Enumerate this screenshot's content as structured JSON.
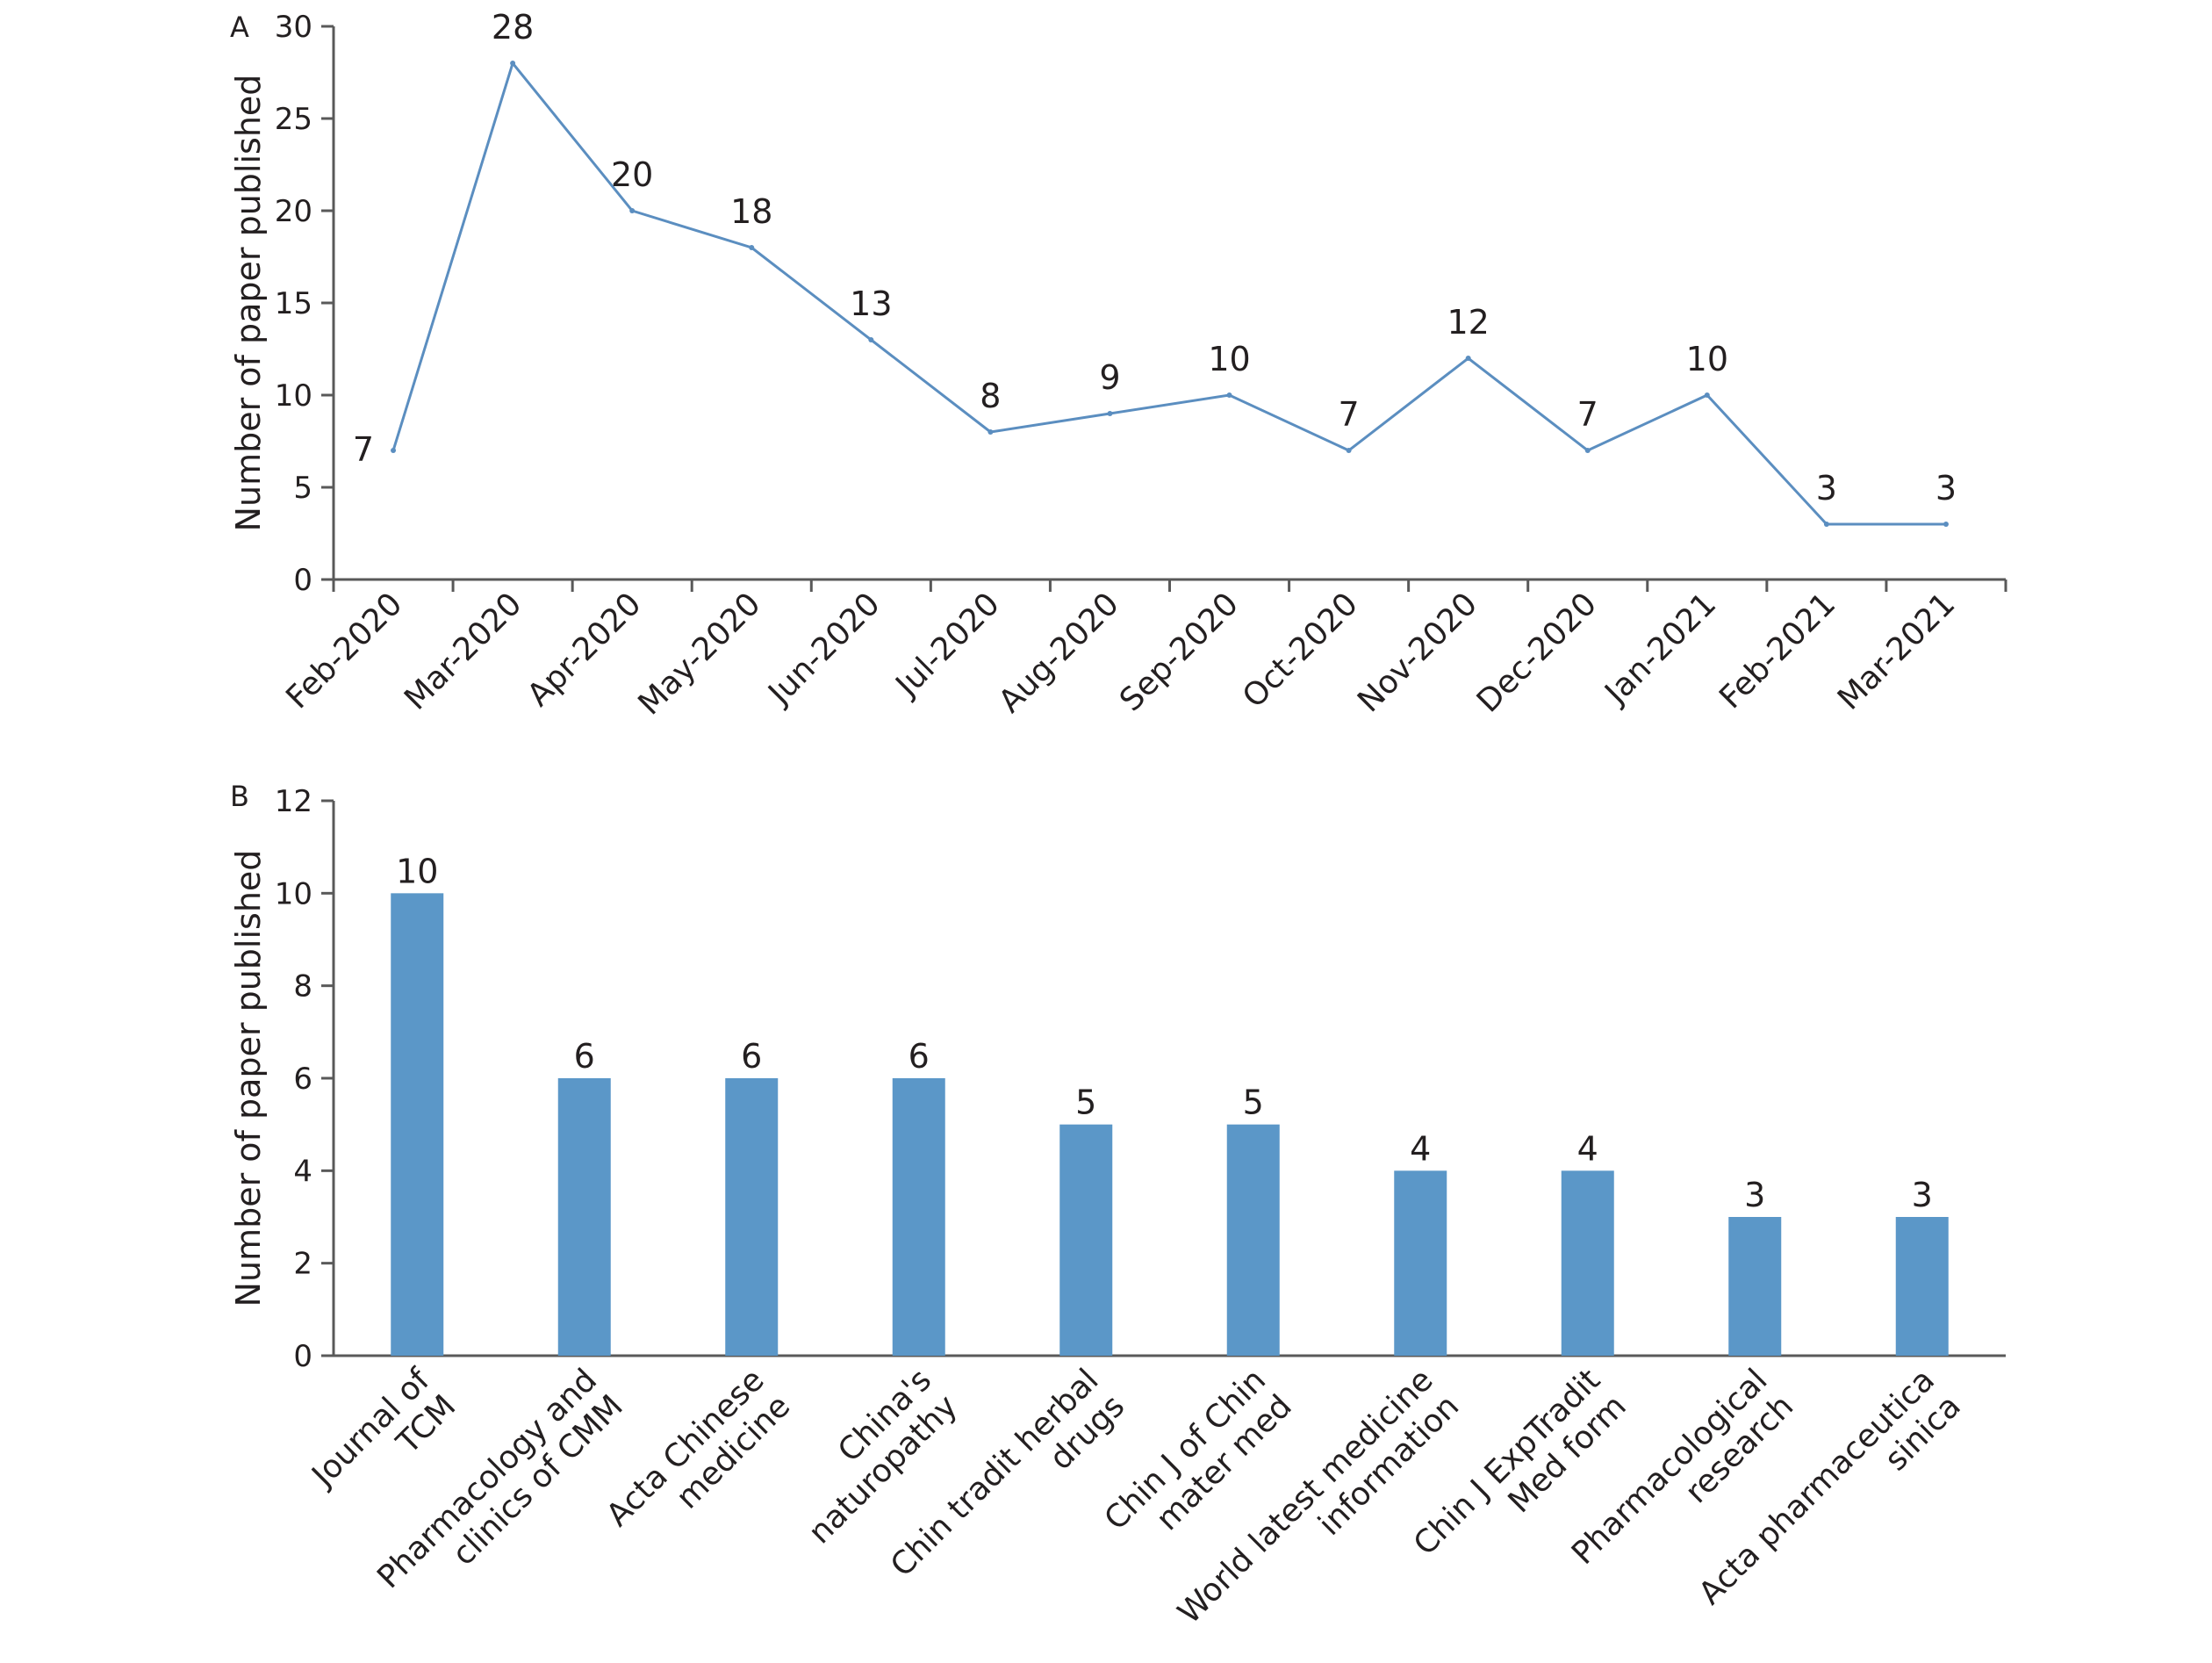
{
  "chart_data": [
    {
      "panel": "A",
      "type": "line",
      "title": "",
      "xlabel": "",
      "ylabel": "Number of paper published",
      "ylim": [
        0,
        30
      ],
      "yticks": [
        0,
        5,
        10,
        15,
        20,
        25,
        30
      ],
      "grid": false,
      "legend": "none",
      "color": "#5b8ec0",
      "categories": [
        "Feb-2020",
        "Mar-2020",
        "Apr-2020",
        "May-2020",
        "Jun-2020",
        "Jul-2020",
        "Aug-2020",
        "Sep-2020",
        "Oct-2020",
        "Nov-2020",
        "Dec-2020",
        "Jan-2021",
        "Feb-2021",
        "Mar-2021"
      ],
      "series": [
        {
          "values": [
            7,
            28,
            20,
            18,
            13,
            8,
            9,
            10,
            7,
            12,
            7,
            10,
            3,
            3
          ]
        }
      ]
    },
    {
      "panel": "B",
      "type": "bar",
      "title": "",
      "xlabel": "",
      "ylabel": "Number of paper published",
      "ylim": [
        0,
        12
      ],
      "yticks": [
        0,
        2,
        4,
        6,
        8,
        10,
        12
      ],
      "grid": false,
      "legend": "none",
      "color": "#5b97c8",
      "categories": [
        [
          "Journal of",
          "TCM"
        ],
        [
          "Pharmacology and",
          "clinics of CMM"
        ],
        [
          "Acta Chinese",
          "medicine"
        ],
        [
          "China's",
          "naturopathy"
        ],
        [
          "Chin tradit herbal",
          "drugs"
        ],
        [
          "Chin J of Chin",
          "mater med"
        ],
        [
          "World latest medicine",
          "information"
        ],
        [
          "Chin J ExpTradit",
          "Med form"
        ],
        [
          "Pharmacological",
          "research"
        ],
        [
          "Acta pharmaceutica",
          "sinica"
        ]
      ],
      "values": [
        10,
        6,
        6,
        6,
        5,
        5,
        4,
        4,
        3,
        3
      ]
    }
  ]
}
